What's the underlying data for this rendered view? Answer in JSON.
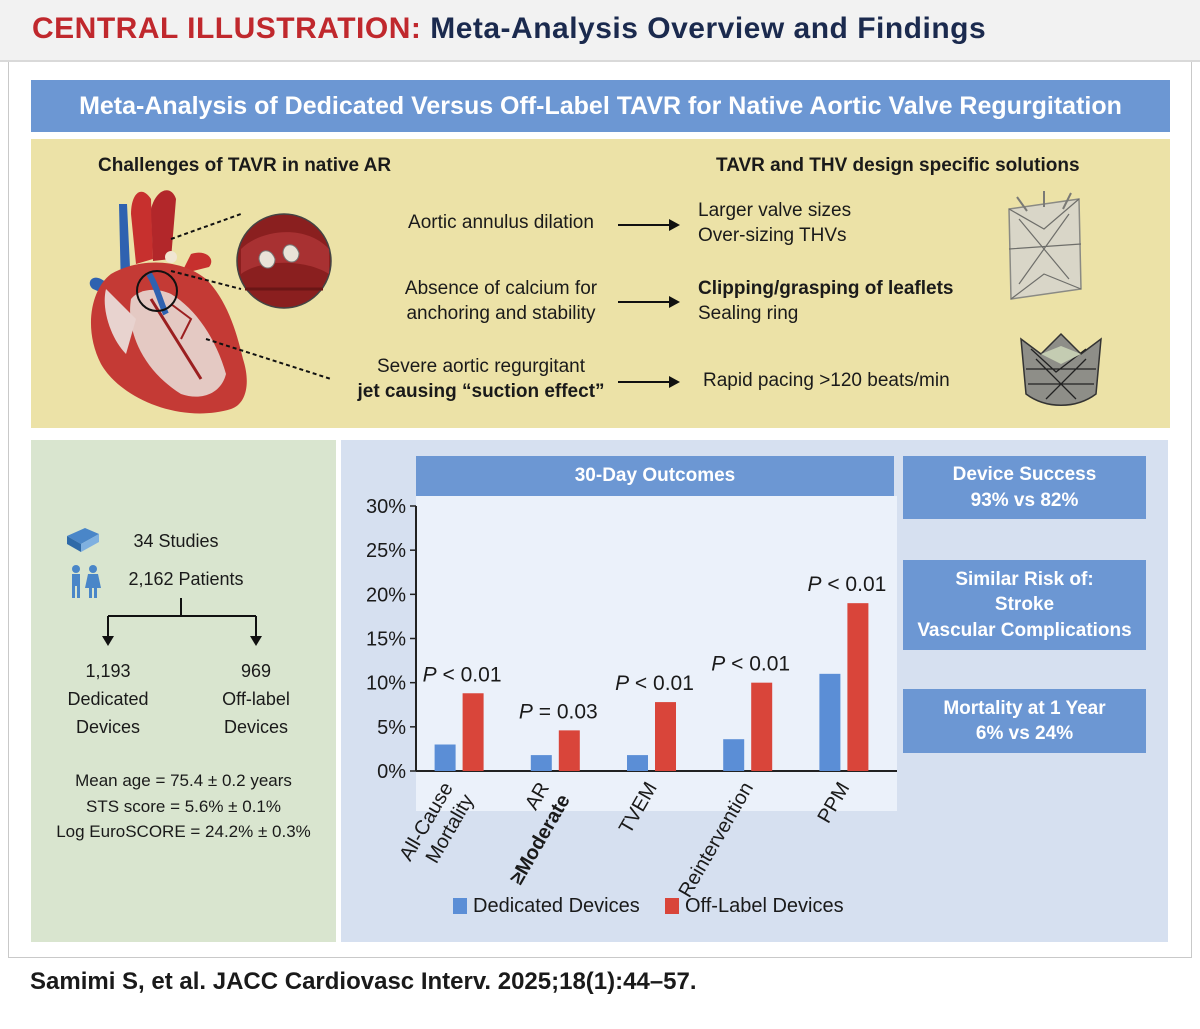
{
  "header": {
    "label": "CENTRAL ILLUSTRATION:",
    "title": "Meta-Analysis Overview and Findings"
  },
  "banner": {
    "title": "Meta-Analysis of Dedicated Versus Off-Label TAVR for Native Aortic Valve Regurgitation"
  },
  "challenges": {
    "left_heading": "Challenges of TAVR in native AR",
    "right_heading": "TAVR and THV design specific solutions",
    "rows": [
      {
        "challenge": [
          "Aortic annulus dilation"
        ],
        "solution": [
          "Larger valve sizes",
          "Over-sizing THVs"
        ]
      },
      {
        "challenge": [
          "Absence of calcium for",
          "anchoring and stability"
        ],
        "solution": [
          "Clipping/grasping of leaflets",
          "Sealing ring"
        ]
      },
      {
        "challenge": [
          "Severe aortic regurgitant",
          "jet causing “suction effect”"
        ],
        "solution": [
          "Rapid pacing >120 beats/min"
        ]
      }
    ]
  },
  "demographics": {
    "studies": "34 Studies",
    "patients": "2,162 Patients",
    "dedicated_count": "1,193",
    "dedicated_label_1": "Dedicated",
    "dedicated_label_2": "Devices",
    "offlabel_count": "969",
    "offlabel_label_1": "Off-label",
    "offlabel_label_2": "Devices",
    "mean_age": "Mean age = 75.4 ± 0.2 years",
    "sts_score": "STS score = 5.6% ± 0.1%",
    "euroscore": "Log EuroSCORE = 24.2% ± 0.3%",
    "book_icon": "book-icon",
    "people_icon": "people-icon"
  },
  "outcomes": {
    "title": "30-Day Outcomes",
    "side_boxes": [
      {
        "line1": "Device Success",
        "line2": "93% vs 82%"
      },
      {
        "line1": "Similar Risk of:",
        "line2": "Stroke",
        "line3": "Vascular Complications"
      },
      {
        "line1": "Mortality at 1 Year",
        "line2": "6% vs 24%"
      }
    ]
  },
  "chart_data": {
    "type": "bar",
    "title": "30-Day Outcomes",
    "categories": [
      "All-Cause Mortality",
      "AR ≥Moderate",
      "TVEM",
      "Reintervention",
      "PPM"
    ],
    "category_lines": [
      [
        "All-Cause",
        "Mortality"
      ],
      [
        "AR",
        "≥Moderate"
      ],
      [
        "TVEM"
      ],
      [
        "Reintervention"
      ],
      [
        "PPM"
      ]
    ],
    "series": [
      {
        "name": "Dedicated Devices",
        "color": "#5b8ed6",
        "values": [
          3.0,
          1.8,
          1.8,
          3.6,
          11.0
        ]
      },
      {
        "name": "Off-Label Devices",
        "color": "#d9453a",
        "values": [
          8.8,
          4.6,
          7.8,
          10.0,
          19.0
        ]
      }
    ],
    "p_values": [
      "P < 0.01",
      "P = 0.03",
      "P < 0.01",
      "P < 0.01",
      "P < 0.01"
    ],
    "yticks": [
      "0%",
      "5%",
      "10%",
      "15%",
      "20%",
      "25%",
      "30%"
    ],
    "ylim": [
      0,
      30
    ],
    "grid": false,
    "legend_position": "bottom"
  }
}
